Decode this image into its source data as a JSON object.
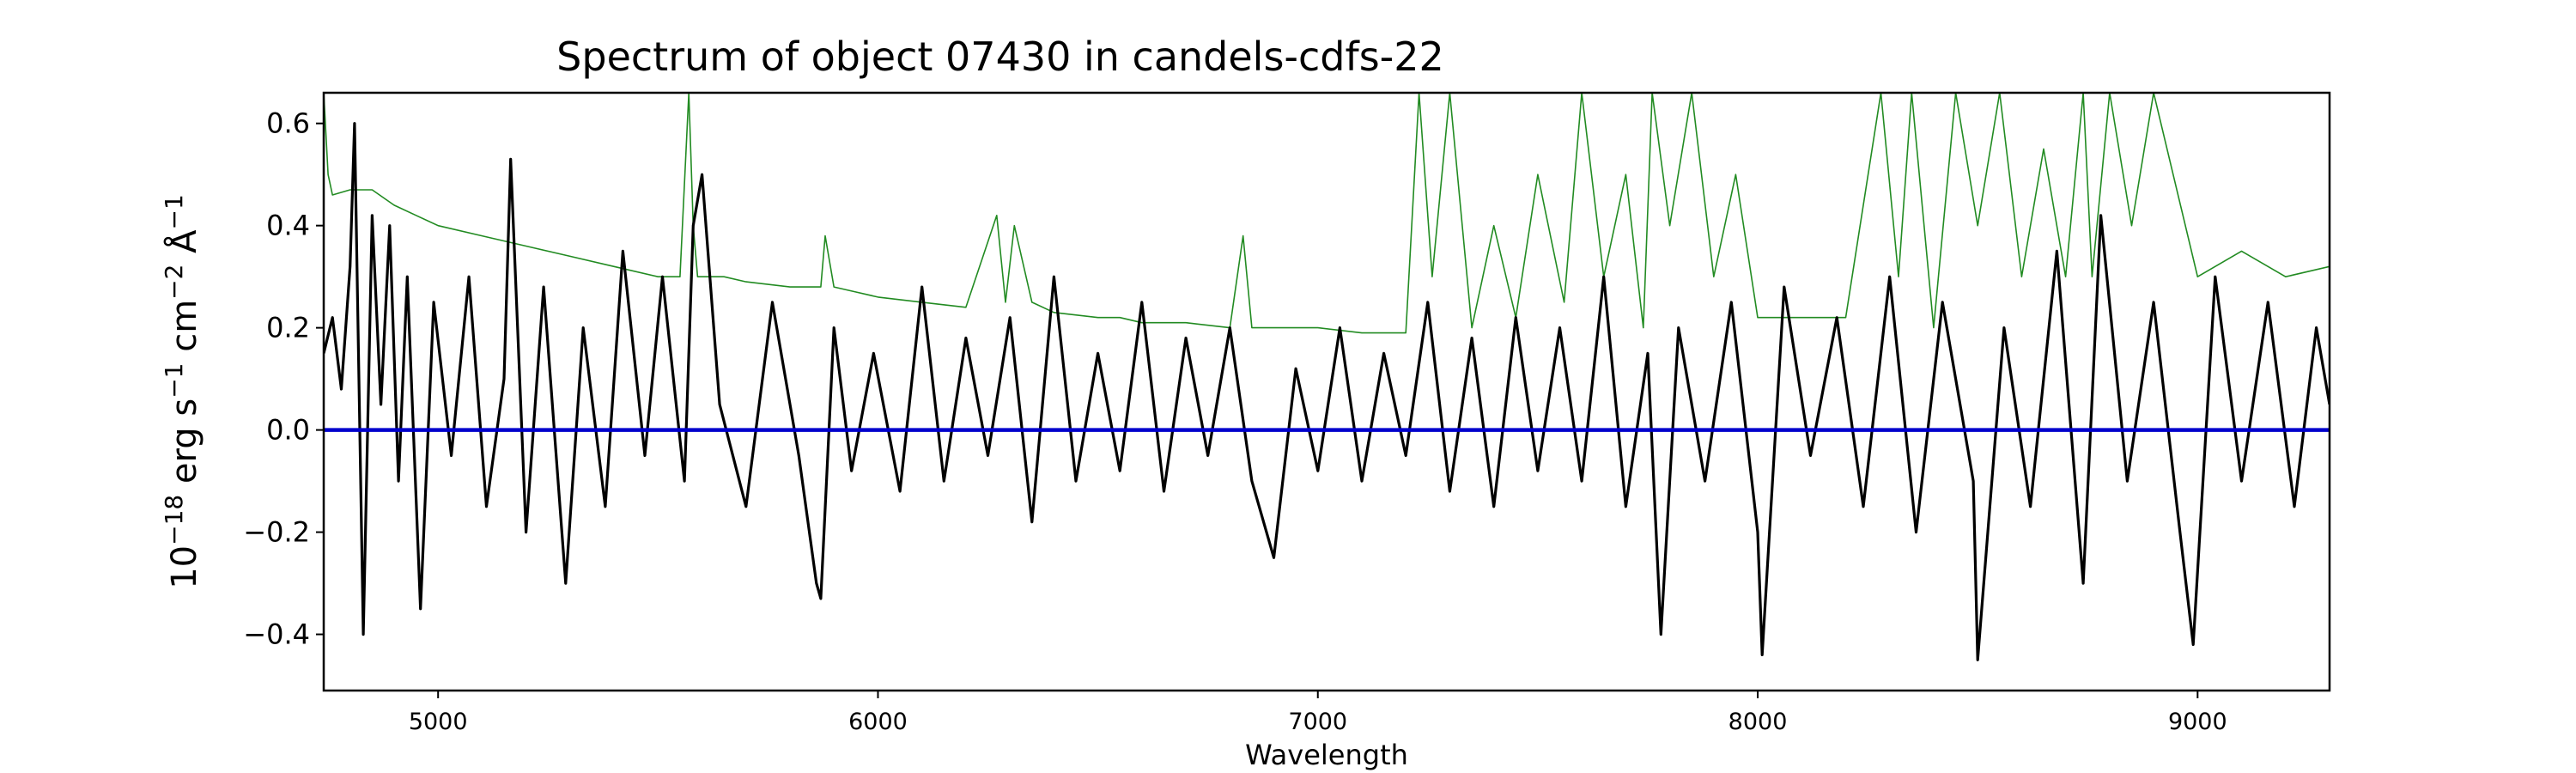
{
  "chart_data": {
    "type": "line",
    "title": "Spectrum of object 07430 in candels-cdfs-22",
    "xlabel": "Wavelength",
    "ylabel": {
      "base": "10",
      "exp": "−18",
      "unit_parts": [
        {
          "text": " erg s",
          "sup": "−1"
        },
        {
          "text": " cm",
          "sup": "−2"
        },
        {
          "text": " Å",
          "sup": "−1"
        }
      ]
    },
    "xlim": [
      4740,
      9300
    ],
    "ylim": [
      -0.51,
      0.66
    ],
    "xticks": [
      5000,
      6000,
      7000,
      8000,
      9000
    ],
    "yticks": [
      -0.4,
      -0.2,
      0.0,
      0.2,
      0.4,
      0.6
    ],
    "xtick_labels": [
      "5000",
      "6000",
      "7000",
      "8000",
      "9000"
    ],
    "ytick_labels": [
      "−0.4",
      "−0.2",
      "0.0",
      "0.2",
      "0.4",
      "0.6"
    ],
    "grid": false,
    "legend": "none",
    "colors": {
      "flux": "#000000",
      "noise": "#228B22",
      "zero": "#0000cc"
    },
    "series": [
      {
        "role": "flux",
        "x": [
          4740,
          4760,
          4780,
          4800,
          4810,
          4830,
          4850,
          4870,
          4890,
          4910,
          4930,
          4960,
          4990,
          5030,
          5070,
          5110,
          5150,
          5165,
          5200,
          5240,
          5290,
          5330,
          5380,
          5420,
          5470,
          5510,
          5560,
          5580,
          5600,
          5640,
          5700,
          5760,
          5820,
          5860,
          5870,
          5900,
          5940,
          5990,
          6050,
          6100,
          6150,
          6200,
          6250,
          6300,
          6350,
          6400,
          6450,
          6500,
          6550,
          6600,
          6650,
          6700,
          6750,
          6800,
          6850,
          6900,
          6950,
          7000,
          7050,
          7100,
          7150,
          7200,
          7250,
          7300,
          7350,
          7400,
          7450,
          7500,
          7550,
          7600,
          7650,
          7700,
          7750,
          7780,
          7820,
          7880,
          7940,
          8000,
          8010,
          8060,
          8120,
          8180,
          8240,
          8300,
          8360,
          8420,
          8490,
          8500,
          8560,
          8620,
          8680,
          8740,
          8780,
          8840,
          8900,
          8960,
          8990,
          9040,
          9100,
          9160,
          9220,
          9270,
          9300
        ],
        "y": [
          0.15,
          0.22,
          0.08,
          0.32,
          0.6,
          -0.4,
          0.42,
          0.05,
          0.4,
          -0.1,
          0.3,
          -0.35,
          0.25,
          -0.05,
          0.3,
          -0.15,
          0.1,
          0.53,
          -0.2,
          0.28,
          -0.3,
          0.2,
          -0.15,
          0.35,
          -0.05,
          0.3,
          -0.1,
          0.4,
          0.5,
          0.05,
          -0.15,
          0.25,
          -0.05,
          -0.3,
          -0.33,
          0.2,
          -0.08,
          0.15,
          -0.12,
          0.28,
          -0.1,
          0.18,
          -0.05,
          0.22,
          -0.18,
          0.3,
          -0.1,
          0.15,
          -0.08,
          0.25,
          -0.12,
          0.18,
          -0.05,
          0.2,
          -0.1,
          -0.25,
          0.12,
          -0.08,
          0.2,
          -0.1,
          0.15,
          -0.05,
          0.25,
          -0.12,
          0.18,
          -0.15,
          0.22,
          -0.08,
          0.2,
          -0.1,
          0.3,
          -0.15,
          0.15,
          -0.4,
          0.2,
          -0.1,
          0.25,
          -0.2,
          -0.44,
          0.28,
          -0.05,
          0.22,
          -0.15,
          0.3,
          -0.2,
          0.25,
          -0.1,
          -0.45,
          0.2,
          -0.15,
          0.35,
          -0.3,
          0.42,
          -0.1,
          0.25,
          -0.2,
          -0.42,
          0.3,
          -0.1,
          0.25,
          -0.15,
          0.2,
          0.05
        ]
      },
      {
        "role": "noise",
        "x": [
          4740,
          4750,
          4760,
          4800,
          4850,
          4900,
          4950,
          5000,
          5100,
          5200,
          5300,
          5400,
          5500,
          5550,
          5570,
          5580,
          5590,
          5650,
          5700,
          5800,
          5870,
          5880,
          5900,
          5950,
          6000,
          6100,
          6200,
          6270,
          6290,
          6310,
          6350,
          6400,
          6500,
          6550,
          6600,
          6700,
          6800,
          6830,
          6850,
          6900,
          7000,
          7100,
          7200,
          7230,
          7260,
          7300,
          7350,
          7400,
          7450,
          7500,
          7560,
          7600,
          7650,
          7700,
          7740,
          7760,
          7800,
          7850,
          7900,
          7950,
          8000,
          8100,
          8200,
          8280,
          8320,
          8350,
          8400,
          8450,
          8500,
          8550,
          8600,
          8650,
          8700,
          8740,
          8760,
          8800,
          8850,
          8900,
          9000,
          9100,
          9200,
          9300
        ],
        "y": [
          0.66,
          0.5,
          0.46,
          0.47,
          0.47,
          0.44,
          0.42,
          0.4,
          0.38,
          0.36,
          0.34,
          0.32,
          0.3,
          0.3,
          0.66,
          0.4,
          0.3,
          0.3,
          0.29,
          0.28,
          0.28,
          0.38,
          0.28,
          0.27,
          0.26,
          0.25,
          0.24,
          0.42,
          0.25,
          0.4,
          0.25,
          0.23,
          0.22,
          0.22,
          0.21,
          0.21,
          0.2,
          0.38,
          0.2,
          0.2,
          0.2,
          0.19,
          0.19,
          0.66,
          0.3,
          0.66,
          0.2,
          0.4,
          0.22,
          0.5,
          0.25,
          0.66,
          0.3,
          0.5,
          0.2,
          0.66,
          0.4,
          0.66,
          0.3,
          0.5,
          0.22,
          0.22,
          0.22,
          0.66,
          0.3,
          0.66,
          0.2,
          0.66,
          0.4,
          0.66,
          0.3,
          0.55,
          0.3,
          0.66,
          0.3,
          0.66,
          0.4,
          0.66,
          0.3,
          0.35,
          0.3,
          0.32
        ]
      },
      {
        "role": "zero",
        "x": [
          4740,
          9300
        ],
        "y": [
          0,
          0
        ]
      }
    ]
  }
}
